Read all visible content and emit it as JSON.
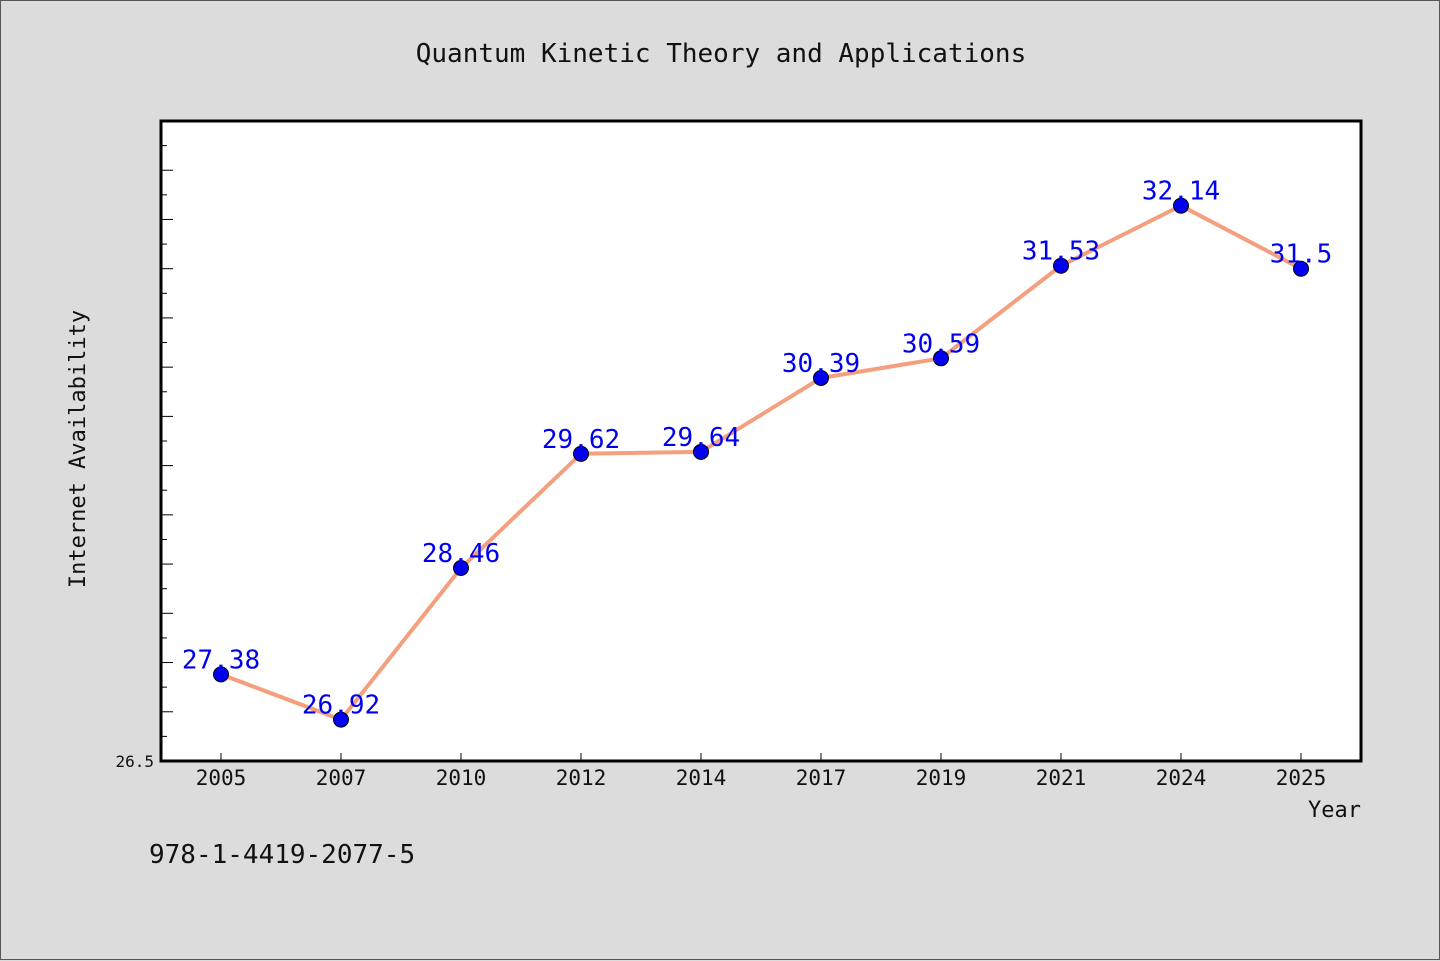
{
  "chart_data": {
    "type": "line",
    "title": "Quantum Kinetic Theory and Applications",
    "xlabel": "Year",
    "ylabel": "Internet Availability",
    "categories": [
      "2005",
      "2007",
      "2010",
      "2012",
      "2014",
      "2017",
      "2019",
      "2021",
      "2024",
      "2025"
    ],
    "series": [
      {
        "values": [
          27.38,
          26.92,
          28.46,
          29.62,
          29.64,
          30.39,
          30.59,
          31.53,
          32.14,
          31.5
        ],
        "labels": [
          "27.38",
          "26.92",
          "28.46",
          "29.62",
          "29.64",
          "30.39",
          "30.59",
          "31.53",
          "32.14",
          "31.5"
        ]
      }
    ],
    "ylim": [
      26.5,
      33.0
    ],
    "y_tick_label": "26.5",
    "grid": false,
    "line_color": "#f4a07e",
    "marker_color": "#0000ee",
    "label_color": "#0000ee"
  },
  "footer": {
    "isbn": "978-1-4419-2077-5"
  }
}
